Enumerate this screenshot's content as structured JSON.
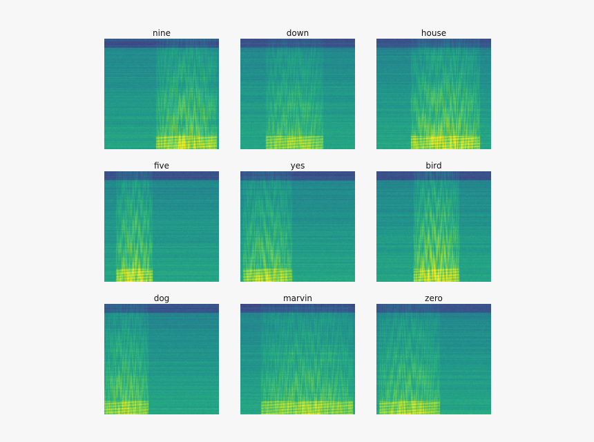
{
  "chart_data": {
    "type": "heatmap",
    "layout": "3x3 grid of spectrogram panels",
    "colormap": "viridis",
    "axes_visible": false,
    "panels": [
      {
        "title": "nine",
        "energy_profile": {
          "onset": 0.45,
          "offset": 0.98,
          "peak": 0.78
        }
      },
      {
        "title": "down",
        "energy_profile": {
          "onset": 0.22,
          "offset": 0.72,
          "peak": 0.7
        }
      },
      {
        "title": "house",
        "energy_profile": {
          "onset": 0.3,
          "offset": 0.9,
          "peak": 0.8
        }
      },
      {
        "title": "five",
        "energy_profile": {
          "onset": 0.1,
          "offset": 0.42,
          "peak": 0.8
        }
      },
      {
        "title": "yes",
        "energy_profile": {
          "onset": 0.02,
          "offset": 0.45,
          "peak": 0.75
        }
      },
      {
        "title": "bird",
        "energy_profile": {
          "onset": 0.32,
          "offset": 0.72,
          "peak": 0.85
        }
      },
      {
        "title": "dog",
        "energy_profile": {
          "onset": 0.0,
          "offset": 0.38,
          "peak": 0.75
        }
      },
      {
        "title": "marvin",
        "energy_profile": {
          "onset": 0.18,
          "offset": 0.98,
          "peak": 0.72
        }
      },
      {
        "title": "zero",
        "energy_profile": {
          "onset": 0.02,
          "offset": 0.55,
          "peak": 0.72
        }
      }
    ]
  }
}
